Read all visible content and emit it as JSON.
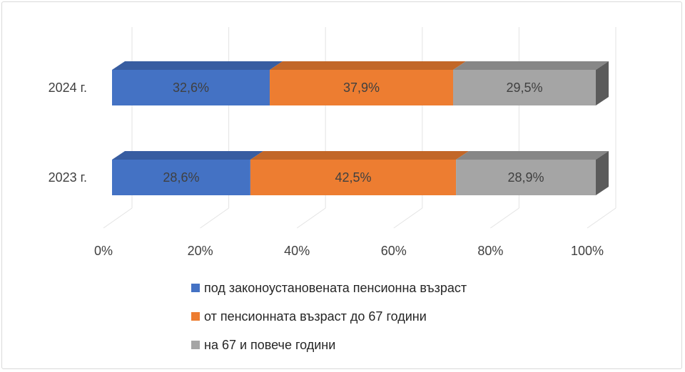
{
  "chart_data": {
    "type": "bar",
    "orientation": "horizontal",
    "stacked": "percent",
    "categories": [
      "2024 г.",
      "2023 г."
    ],
    "series": [
      {
        "name": "под законоустановената пенсионна възраст",
        "values": [
          32.6,
          28.6
        ],
        "labels": [
          "32,6%",
          "28,6%"
        ],
        "color": "#4472C4"
      },
      {
        "name": "от пенсионната възраст до 67 години",
        "values": [
          37.9,
          42.5
        ],
        "labels": [
          "37,9%",
          "42,5%"
        ],
        "color": "#ED7D31"
      },
      {
        "name": "на 67 и повече години",
        "values": [
          29.5,
          28.9
        ],
        "labels": [
          "29,5%",
          "28,9%"
        ],
        "color": "#A5A5A5"
      }
    ],
    "xlim": [
      0,
      100
    ],
    "x_ticks": [
      "0%",
      "20%",
      "40%",
      "60%",
      "80%",
      "100%"
    ],
    "grid": true,
    "legend_position": "bottom"
  }
}
